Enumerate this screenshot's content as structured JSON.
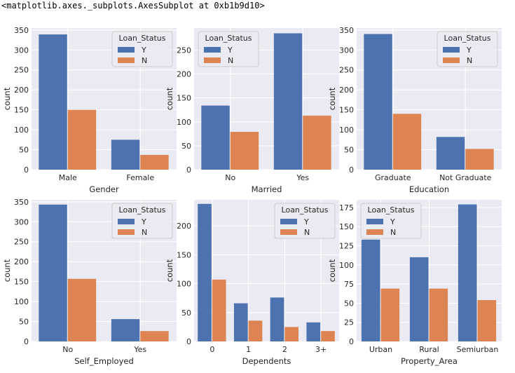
{
  "output_text": "<matplotlib.axes._subplots.AxesSubplot at 0xb1b9d10>",
  "colors": {
    "Y": "#4c72b0",
    "N": "#dd8452",
    "plot_bg": "#eaeaf2",
    "grid": "#ffffff",
    "text": "#262626"
  },
  "chart_data": [
    {
      "type": "bar",
      "xlabel": "Gender",
      "ylabel": "count",
      "categories": [
        "Male",
        "Female"
      ],
      "yticks": [
        0,
        50,
        100,
        150,
        200,
        250,
        300,
        350
      ],
      "ylim": [
        0,
        355
      ],
      "legend": {
        "title": "Loan_Status",
        "position": "top-right"
      },
      "series": [
        {
          "name": "Y",
          "values": [
            339,
            75
          ]
        },
        {
          "name": "N",
          "values": [
            150,
            37
          ]
        }
      ]
    },
    {
      "type": "bar",
      "xlabel": "Married",
      "ylabel": "count",
      "categories": [
        "No",
        "Yes"
      ],
      "yticks": [
        0,
        50,
        100,
        150,
        200,
        250
      ],
      "ylim": [
        0,
        296
      ],
      "legend": {
        "title": "Loan_Status",
        "position": "top-left"
      },
      "series": [
        {
          "name": "Y",
          "values": [
            134,
            285
          ]
        },
        {
          "name": "N",
          "values": [
            79,
            113
          ]
        }
      ]
    },
    {
      "type": "bar",
      "xlabel": "Education",
      "ylabel": "count",
      "categories": [
        "Graduate",
        "Not Graduate"
      ],
      "yticks": [
        0,
        50,
        100,
        150,
        200,
        250,
        300,
        350
      ],
      "ylim": [
        0,
        355
      ],
      "legend": {
        "title": "Loan_Status",
        "position": "top-right"
      },
      "series": [
        {
          "name": "Y",
          "values": [
            340,
            82
          ]
        },
        {
          "name": "N",
          "values": [
            140,
            52
          ]
        }
      ]
    },
    {
      "type": "bar",
      "xlabel": "Self_Employed",
      "ylabel": "count",
      "categories": [
        "No",
        "Yes"
      ],
      "yticks": [
        0,
        50,
        100,
        150,
        200,
        250,
        300,
        350
      ],
      "ylim": [
        0,
        355
      ],
      "legend": {
        "title": "Loan_Status",
        "position": "top-right"
      },
      "series": [
        {
          "name": "Y",
          "values": [
            343,
            56
          ]
        },
        {
          "name": "N",
          "values": [
            157,
            26
          ]
        }
      ]
    },
    {
      "type": "bar",
      "xlabel": "Dependents",
      "ylabel": "count",
      "categories": [
        "0",
        "1",
        "2",
        "3+"
      ],
      "yticks": [
        0,
        50,
        100,
        150,
        200
      ],
      "ylim": [
        0,
        245
      ],
      "legend": {
        "title": "Loan_Status",
        "position": "top-right"
      },
      "series": [
        {
          "name": "Y",
          "values": [
            238,
            66,
            76,
            33
          ]
        },
        {
          "name": "N",
          "values": [
            107,
            36,
            25,
            18
          ]
        }
      ]
    },
    {
      "type": "bar",
      "xlabel": "Property_Area",
      "ylabel": "count",
      "categories": [
        "Urban",
        "Rural",
        "Semiurban"
      ],
      "yticks": [
        0,
        25,
        50,
        75,
        100,
        125,
        150,
        175
      ],
      "ylim": [
        0,
        185
      ],
      "legend": {
        "title": "Loan_Status",
        "position": "top-left"
      },
      "series": [
        {
          "name": "Y",
          "values": [
            133,
            110,
            179
          ]
        },
        {
          "name": "N",
          "values": [
            69,
            69,
            54
          ]
        }
      ]
    }
  ]
}
